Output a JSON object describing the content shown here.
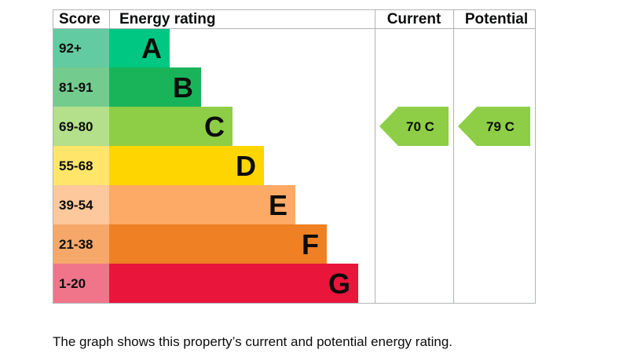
{
  "chart_data": {
    "type": "bar",
    "headers": {
      "score": "Score",
      "rating": "Energy rating",
      "current": "Current",
      "potential": "Potential"
    },
    "bands": [
      {
        "score": "92+",
        "letter": "A",
        "color": "#00c781",
        "score_bg": "#63cba1"
      },
      {
        "score": "81-91",
        "letter": "B",
        "color": "#19b459",
        "score_bg": "#73cb8e"
      },
      {
        "score": "69-80",
        "letter": "C",
        "color": "#8dce46",
        "score_bg": "#b4df8b"
      },
      {
        "score": "55-68",
        "letter": "D",
        "color": "#ffd500",
        "score_bg": "#ffe66b"
      },
      {
        "score": "39-54",
        "letter": "E",
        "color": "#fcaa65",
        "score_bg": "#fdc89b"
      },
      {
        "score": "21-38",
        "letter": "F",
        "color": "#ef8023",
        "score_bg": "#f5a86a"
      },
      {
        "score": "1-20",
        "letter": "G",
        "color": "#e9153b",
        "score_bg": "#f0758a"
      }
    ],
    "current": {
      "value": 70,
      "band": "C",
      "label": "70  C",
      "color": "#8dce46"
    },
    "potential": {
      "value": 79,
      "band": "C",
      "label": "79  C",
      "color": "#8dce46"
    },
    "grid_color": "#b1b4b6"
  },
  "caption": "The graph shows this property’s current and potential energy rating."
}
